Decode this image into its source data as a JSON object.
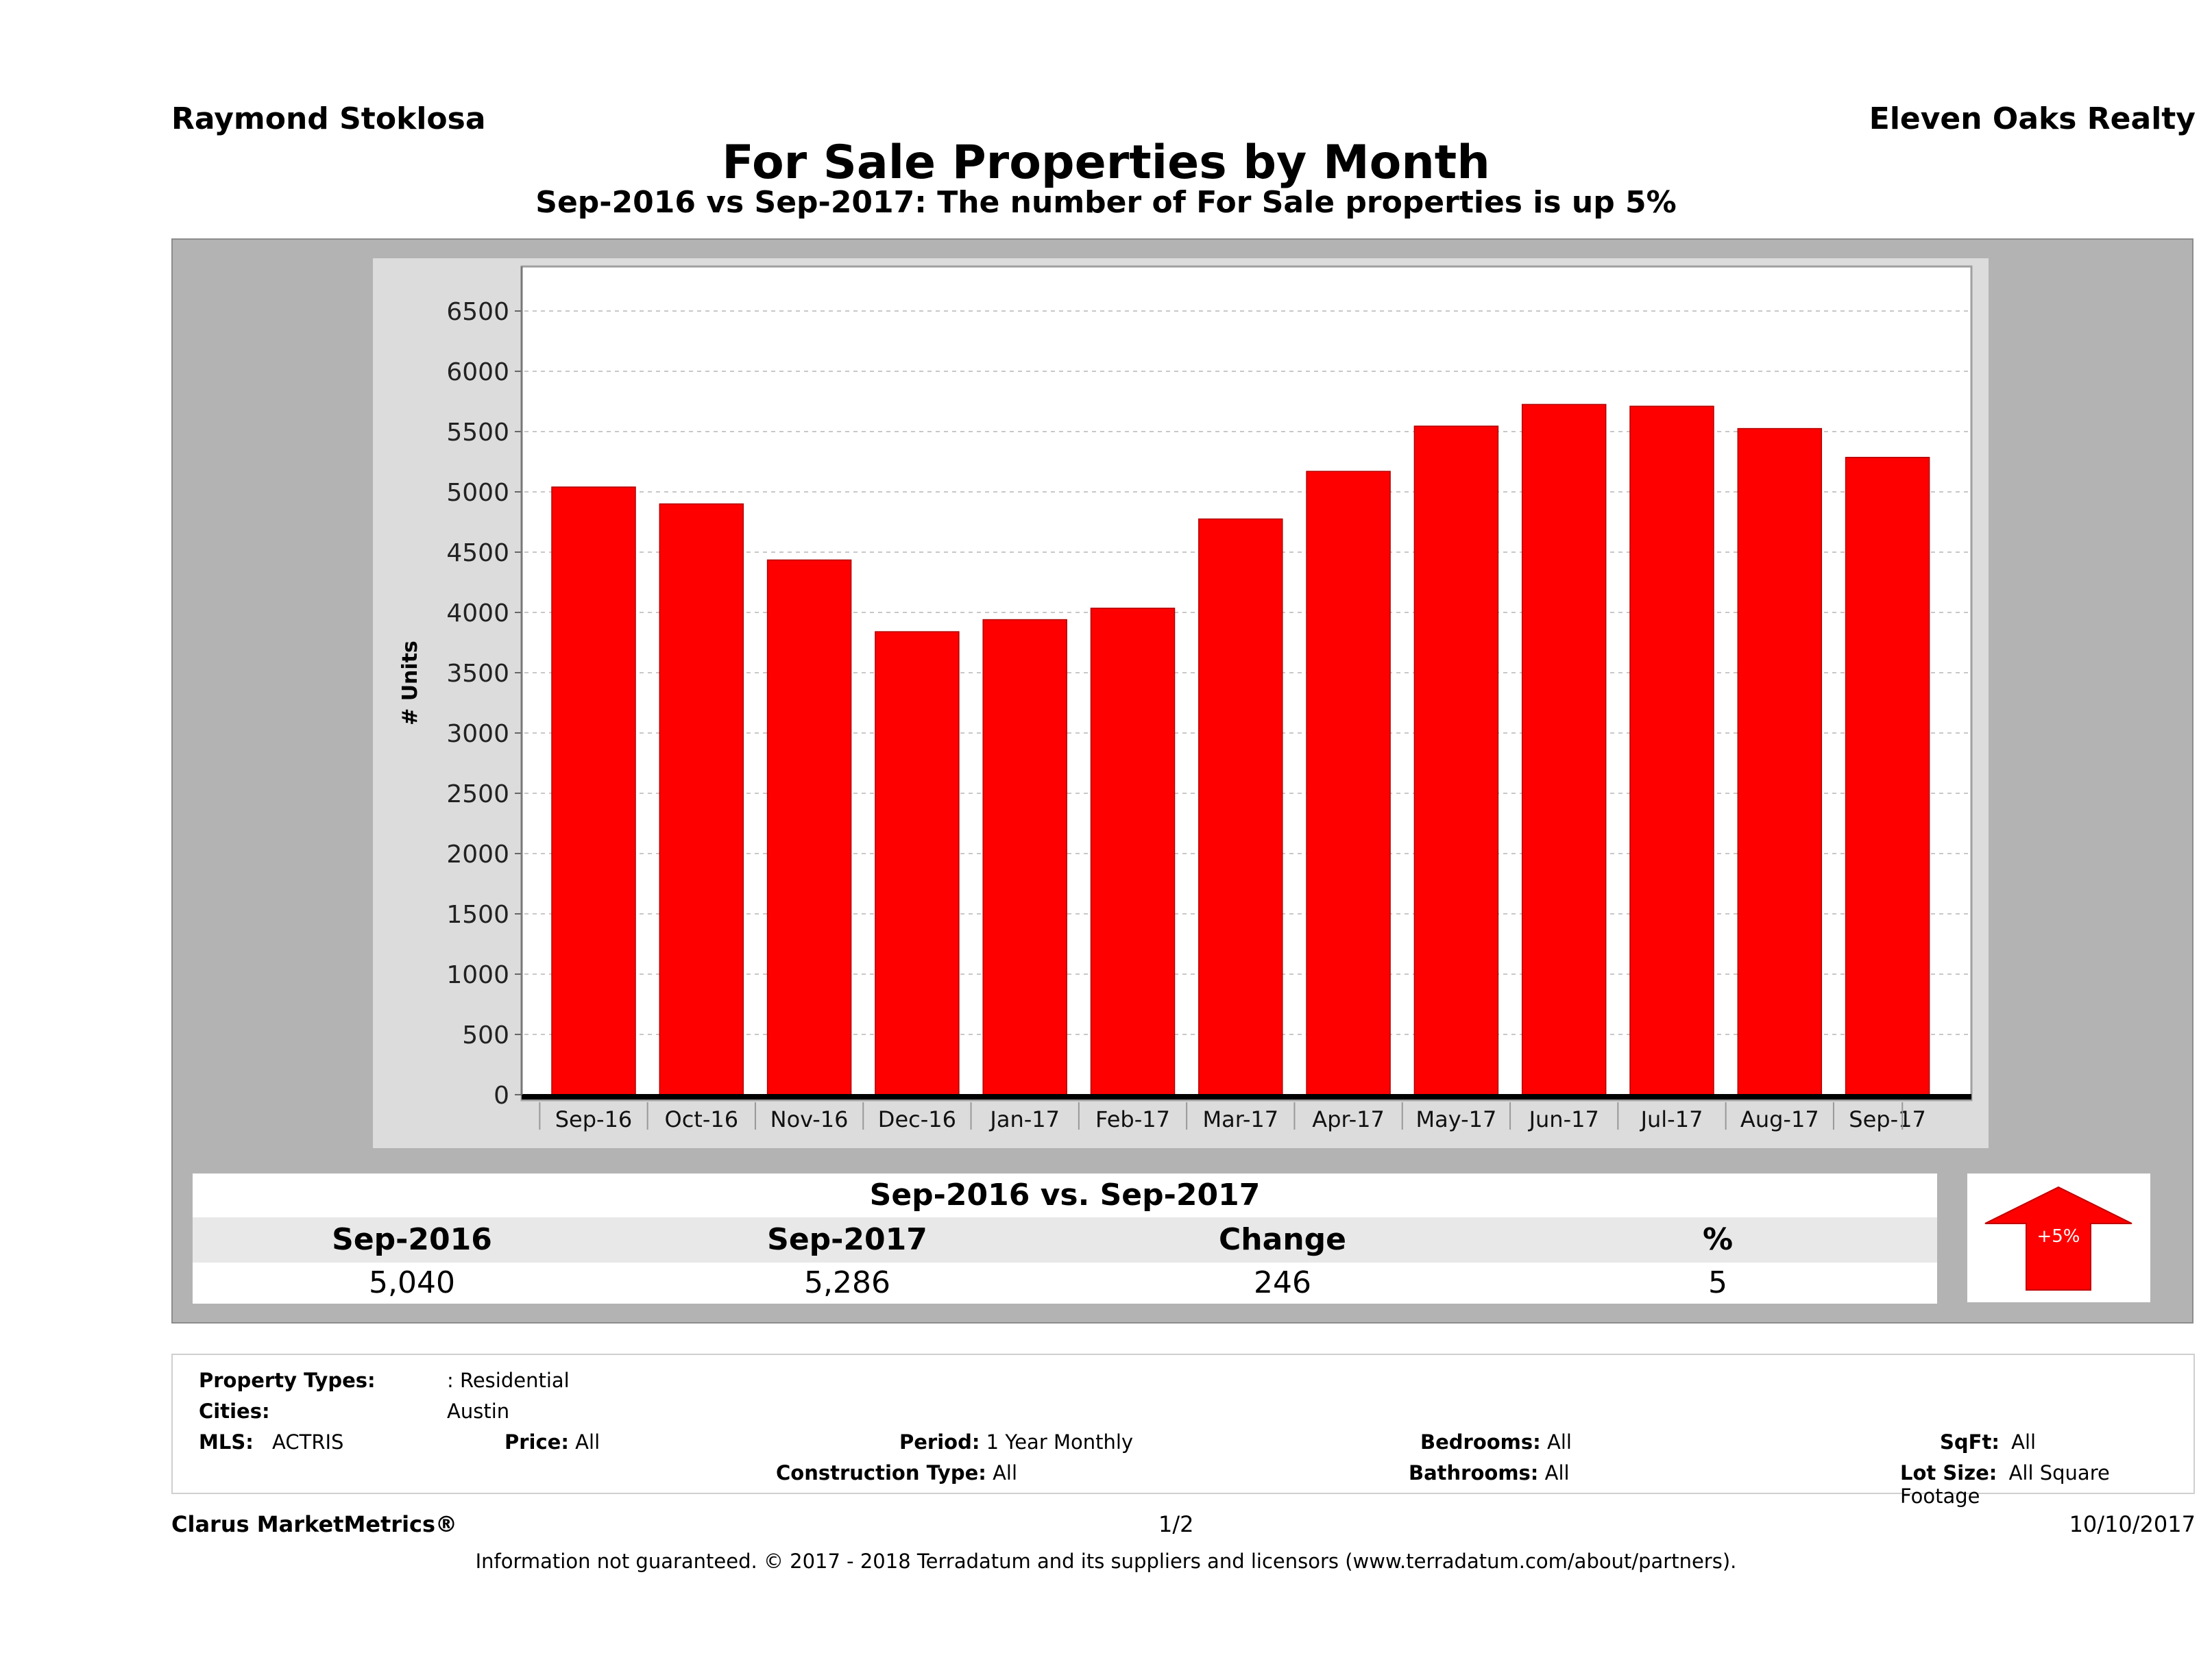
{
  "header": {
    "agent_name": "Raymond Stoklosa",
    "brokerage": "Eleven Oaks Realty"
  },
  "chart_data": {
    "type": "bar",
    "title": "For Sale Properties by Month",
    "subtitle": "Sep-2016 vs Sep-2017: The number of For Sale  properties is up 5%",
    "xlabel": "",
    "ylabel": "# Units",
    "ylim": [
      0,
      6500
    ],
    "yticks": [
      0,
      500,
      1000,
      1500,
      2000,
      2500,
      3000,
      3500,
      4000,
      4500,
      5000,
      5500,
      6000,
      6500
    ],
    "grid": true,
    "bar_color": "#ff0000",
    "categories": [
      "Sep-16",
      "Oct-16",
      "Nov-16",
      "Dec-16",
      "Jan-17",
      "Feb-17",
      "Mar-17",
      "Apr-17",
      "May-17",
      "Jun-17",
      "Jul-17",
      "Aug-17",
      "Sep-17"
    ],
    "values": [
      5040,
      4900,
      4435,
      3840,
      3940,
      4035,
      4775,
      5170,
      5545,
      5725,
      5710,
      5525,
      5286
    ]
  },
  "summary": {
    "title": "Sep-2016 vs. Sep-2017",
    "headers": [
      "Sep-2016",
      "Sep-2017",
      "Change",
      "%"
    ],
    "values": [
      "5,040",
      "5,286",
      "246",
      "5"
    ],
    "badge_label": "+5%",
    "badge_direction": "up",
    "badge_color": "#ff0000"
  },
  "filters": {
    "property_types_label": "Property Types:",
    "property_types_value": ": Residential",
    "cities_label": "Cities:",
    "cities_value": "Austin",
    "mls_label": "MLS:",
    "mls_value": "ACTRIS",
    "price_label": "Price:",
    "price_value": "All",
    "period_label": "Period:",
    "period_value": "1 Year Monthly",
    "construction_label": "Construction Type:",
    "construction_value": "All",
    "bedrooms_label": "Bedrooms:",
    "bedrooms_value": "All",
    "bathrooms_label": "Bathrooms:",
    "bathrooms_value": "All",
    "sqft_label": "SqFt:",
    "sqft_value": "All",
    "lotsize_label": "Lot Size:",
    "lotsize_value": "All Square Footage"
  },
  "footer": {
    "brand": "Clarus MarketMetrics®",
    "page": "1/2",
    "date": "10/10/2017",
    "disclaimer": "Information not guaranteed. © 2017 - 2018 Terradatum and its suppliers and licensors (www.terradatum.com/about/partners)."
  }
}
